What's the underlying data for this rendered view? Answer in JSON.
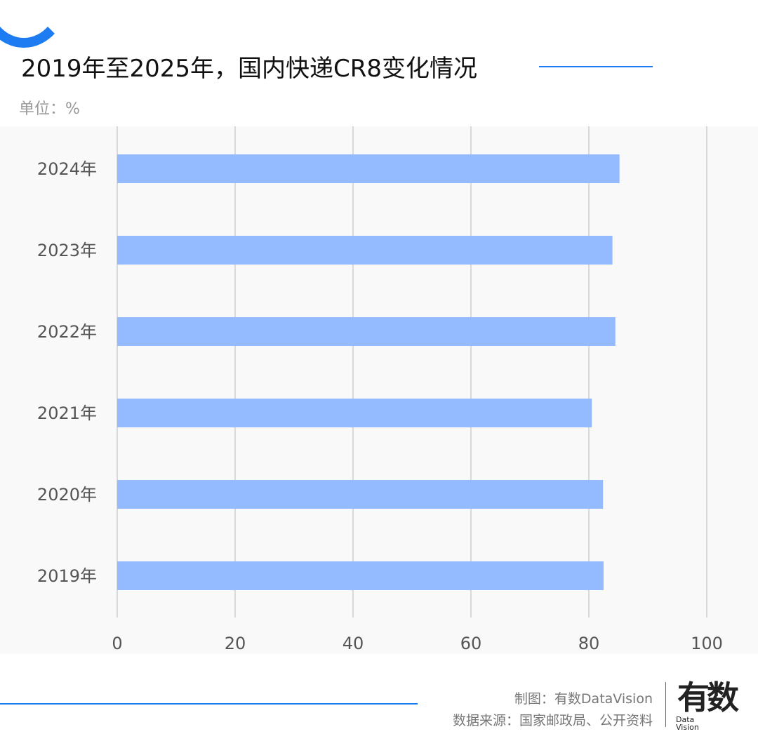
{
  "header": {
    "title": "2019年至2025年，国内快递CR8变化情况",
    "unit": "单位：%"
  },
  "footer": {
    "credit": "制图：有数DataVision",
    "source": "数据来源：国家邮政局、公开资料",
    "logo": "有数",
    "logo_sub": "Data Vision"
  },
  "colors": {
    "bar": "#94bbff",
    "accent": "#1e7cf2",
    "grid": "#d9d9d9"
  },
  "chart_data": {
    "type": "bar",
    "orientation": "horizontal",
    "categories": [
      "2024年",
      "2023年",
      "2022年",
      "2021年",
      "2020年",
      "2019年"
    ],
    "values": [
      85.2,
      84.0,
      84.5,
      80.5,
      82.4,
      82.5
    ],
    "xlim": [
      0,
      100
    ],
    "xticks": [
      "0",
      "20",
      "40",
      "60",
      "80",
      "100"
    ],
    "grid": true,
    "title": "2019年至2025年，国内快递CR8变化情况",
    "xlabel": "",
    "ylabel": ""
  }
}
